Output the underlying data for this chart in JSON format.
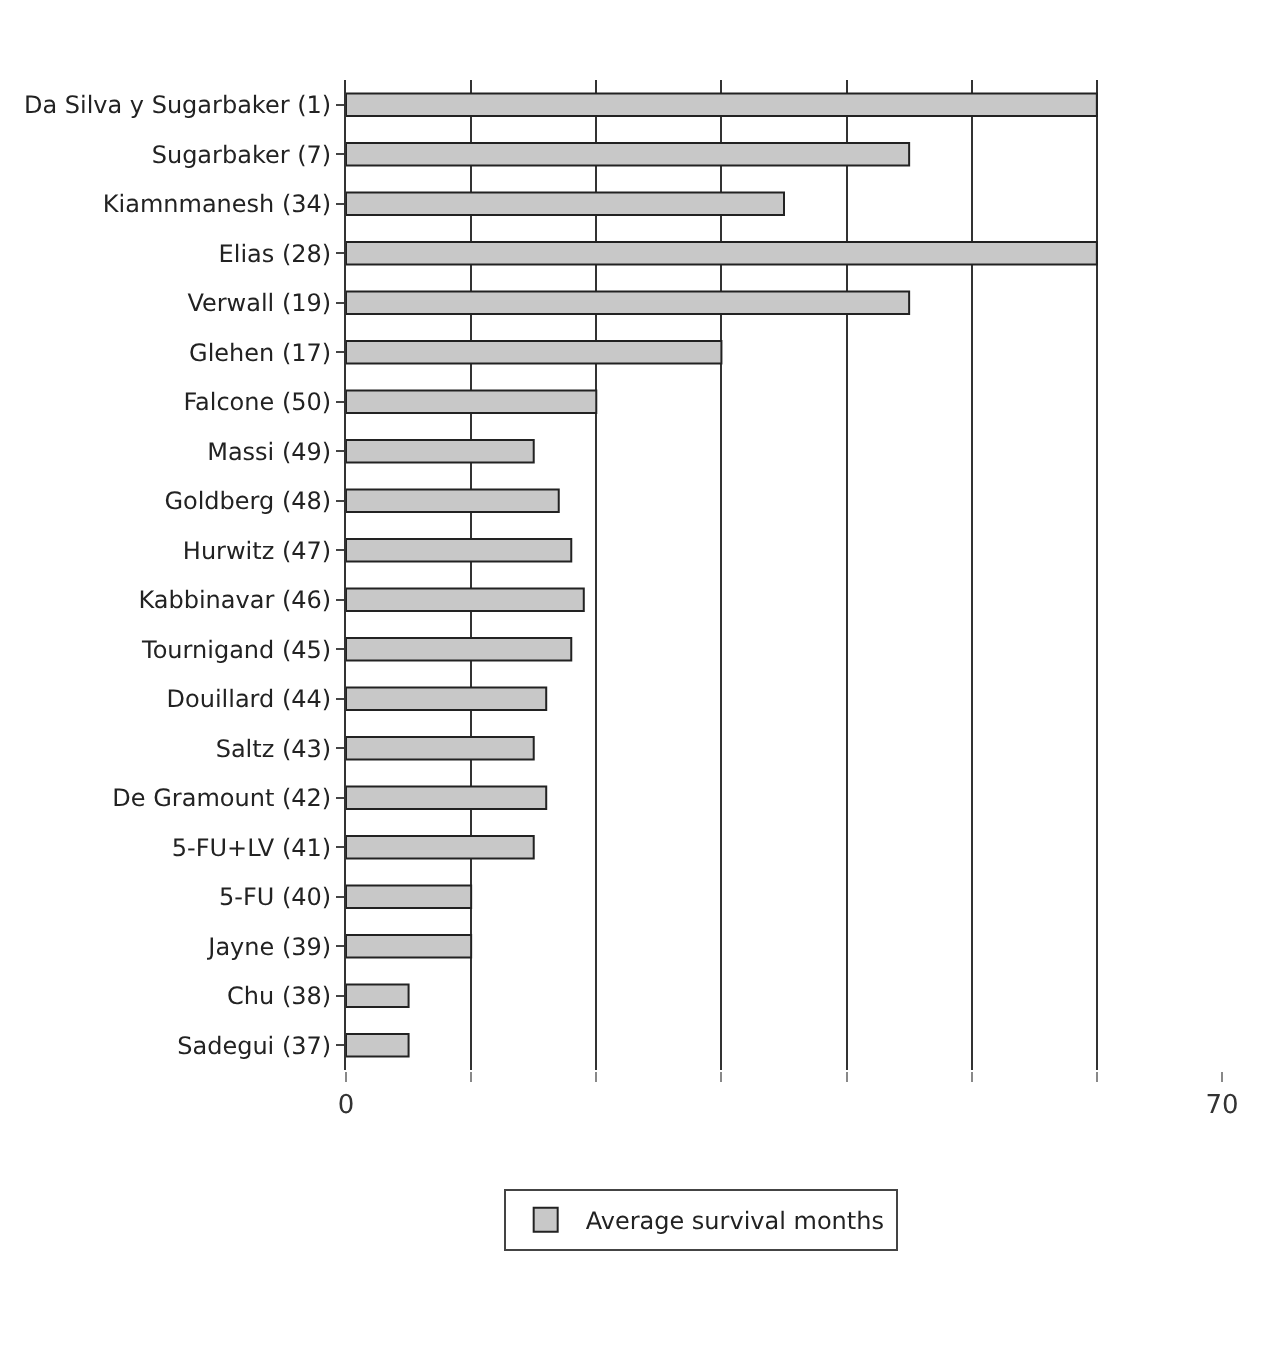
{
  "chart_data": {
    "type": "bar",
    "orientation": "horizontal",
    "categories": [
      "Da Silva y Sugarbaker (1)",
      "Sugarbaker (7)",
      "Kiamnmanesh (34)",
      "Elias (28)",
      "Verwall (19)",
      "Glehen (17)",
      "Falcone (50)",
      "Massi (49)",
      "Goldberg (48)",
      "Hurwitz (47)",
      "Kabbinavar (46)",
      "Tournigand (45)",
      "Douillard (44)",
      "Saltz (43)",
      "De Gramount (42)",
      "5-FU+LV (41)",
      "5-FU (40)",
      "Jayne (39)",
      "Chu (38)",
      "Sadegui (37)"
    ],
    "series": [
      {
        "name": "Average survival months",
        "color": "#c8c8c8",
        "values": [
          60,
          45,
          35,
          60,
          45,
          30,
          20,
          15,
          17,
          18,
          19,
          18,
          16,
          15,
          16,
          15,
          10,
          10,
          5,
          5
        ]
      }
    ],
    "xlim": [
      0,
      70
    ],
    "xticks": [
      0,
      {
        "value": 10,
        "label": null
      },
      {
        "value": 20,
        "label": null
      },
      {
        "value": 30,
        "label": null
      },
      {
        "value": 40,
        "label": null
      },
      {
        "value": 50,
        "label": null
      },
      {
        "value": 60,
        "label": null
      },
      70
    ],
    "grid": "x",
    "legend": "bottom"
  }
}
